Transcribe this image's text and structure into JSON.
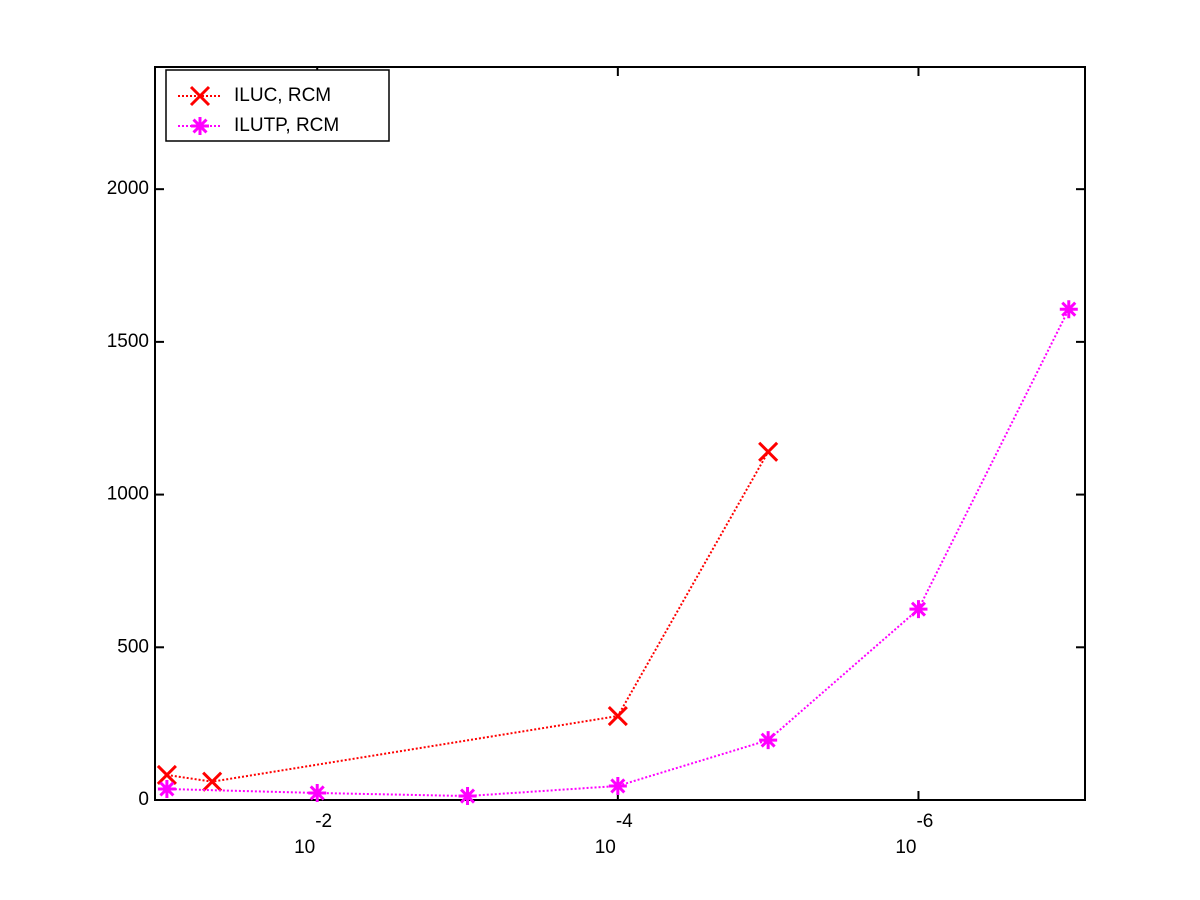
{
  "chart_data": {
    "type": "line",
    "xscale": "log",
    "xlim": [
      0.12,
      7.8e-08
    ],
    "xticks": [
      {
        "value": 0.01,
        "label": "10",
        "exponent": "-2"
      },
      {
        "value": 0.0001,
        "label": "10",
        "exponent": "-4"
      },
      {
        "value": 1e-06,
        "label": "10",
        "exponent": "-6"
      }
    ],
    "ylim": [
      0,
      2400
    ],
    "yticks": [
      0,
      500,
      1000,
      1500,
      2000
    ],
    "legend": "upper left",
    "series": [
      {
        "name": "ILUC, RCM",
        "color": "#ff0000",
        "marker": "x",
        "x": [
          0.1,
          0.05,
          0.0001,
          1e-05
        ],
        "values": [
          82,
          60,
          275,
          1140
        ]
      },
      {
        "name": "ILUTP, RCM",
        "color": "#ff00ff",
        "marker": "*",
        "x": [
          0.1,
          0.01,
          0.001,
          0.0001,
          1e-05,
          1e-06,
          1e-07
        ],
        "values": [
          36,
          23,
          13,
          46,
          196,
          625,
          1607
        ]
      }
    ]
  }
}
